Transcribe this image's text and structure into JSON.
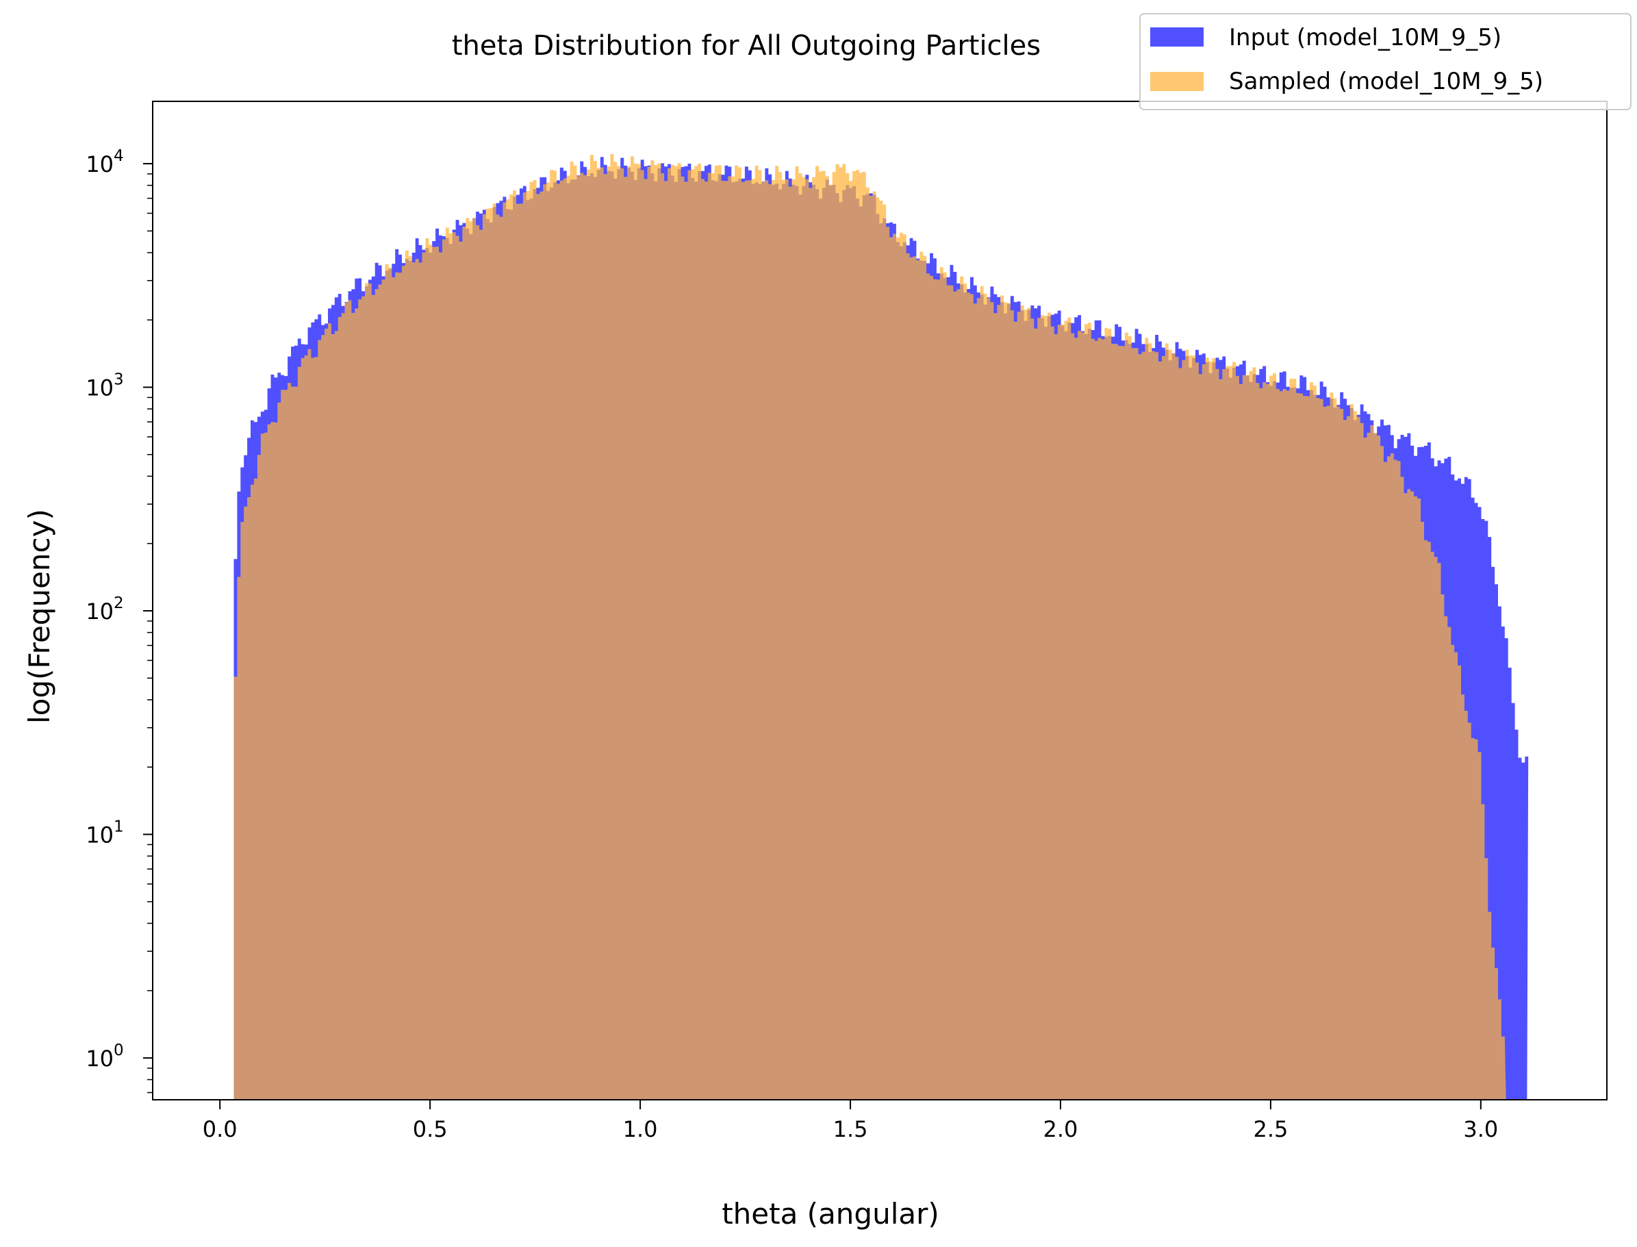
{
  "chart_data": {
    "type": "histogram",
    "title": "theta Distribution for All Outgoing Particles",
    "xlabel": "theta (angular)",
    "ylabel": "log(Frequency)",
    "xlim": [
      -0.16,
      3.3
    ],
    "ylim": [
      0.65,
      19000
    ],
    "yscale": "log",
    "grid": false,
    "legend_position": "top-right",
    "x_ticks": [
      "0.0",
      "0.5",
      "1.0",
      "1.5",
      "2.0",
      "2.5",
      "3.0"
    ],
    "y_ticks": [
      {
        "base": "10",
        "exp": "0"
      },
      {
        "base": "10",
        "exp": "1"
      },
      {
        "base": "10",
        "exp": "2"
      },
      {
        "base": "10",
        "exp": "3"
      },
      {
        "base": "10",
        "exp": "4"
      }
    ],
    "series": [
      {
        "name": "Input (model_10M_9_5)",
        "color": "#4a4aff",
        "x": [
          0.033,
          0.04,
          0.05,
          0.06,
          0.08,
          0.1,
          0.12,
          0.15,
          0.2,
          0.25,
          0.3,
          0.4,
          0.5,
          0.6,
          0.7,
          0.8,
          0.9,
          1.0,
          1.1,
          1.2,
          1.3,
          1.4,
          1.5,
          1.55,
          1.6,
          1.7,
          1.8,
          1.9,
          2.0,
          2.1,
          2.2,
          2.3,
          2.4,
          2.5,
          2.6,
          2.7,
          2.75,
          2.8,
          2.85,
          2.9,
          2.95,
          3.0,
          3.02,
          3.05,
          3.07,
          3.09,
          3.11
        ],
        "y": [
          75,
          300,
          420,
          540,
          650,
          800,
          1000,
          1200,
          1700,
          2100,
          2600,
          3500,
          4400,
          5500,
          7000,
          8500,
          9500,
          9500,
          9300,
          9000,
          8500,
          8000,
          7500,
          7000,
          5000,
          3500,
          2700,
          2300,
          2000,
          1800,
          1600,
          1400,
          1250,
          1100,
          1000,
          800,
          700,
          600,
          550,
          480,
          400,
          300,
          200,
          100,
          50,
          25,
          20
        ]
      },
      {
        "name": "Sampled (model_10M_9_5)",
        "color": "#ffb33a",
        "x": [
          0.033,
          0.04,
          0.05,
          0.06,
          0.08,
          0.1,
          0.12,
          0.15,
          0.2,
          0.25,
          0.3,
          0.4,
          0.5,
          0.6,
          0.7,
          0.8,
          0.9,
          1.0,
          1.1,
          1.2,
          1.3,
          1.4,
          1.5,
          1.55,
          1.6,
          1.7,
          1.8,
          1.9,
          2.0,
          2.1,
          2.2,
          2.3,
          2.4,
          2.5,
          2.6,
          2.7,
          2.75,
          2.8,
          2.85,
          2.9,
          2.95,
          3.0,
          3.02,
          3.04,
          3.06
        ],
        "y": [
          25,
          100,
          200,
          280,
          400,
          550,
          700,
          900,
          1300,
          1700,
          2200,
          3200,
          4200,
          5400,
          7000,
          8700,
          9900,
          9700,
          9300,
          9000,
          8700,
          8700,
          9500,
          8000,
          5000,
          3200,
          2600,
          2200,
          1900,
          1700,
          1500,
          1350,
          1200,
          1050,
          950,
          750,
          600,
          450,
          300,
          150,
          50,
          20,
          5,
          2,
          1
        ]
      }
    ]
  }
}
